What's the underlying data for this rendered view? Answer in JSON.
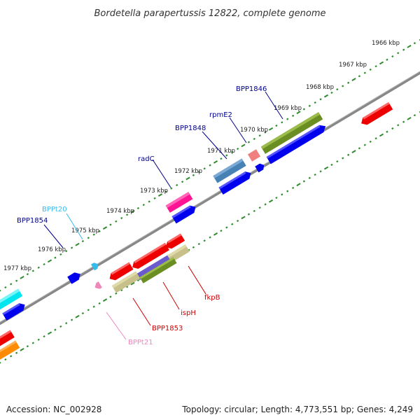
{
  "title": "Bordetella parapertussis 12822, complete genome",
  "tick_labels": [
    "1966 kbp",
    "1967 kbp",
    "1968 kbp",
    "1969 kbp",
    "1970 kbp",
    "1971 kbp",
    "1972 kbp",
    "1973 kbp",
    "1974 kbp",
    "1975 kbp",
    "1976 kbp",
    "1977 kbp"
  ],
  "gene_labels": [
    {
      "text": "BPP1846",
      "color": "#00008b"
    },
    {
      "text": "rpmE2",
      "color": "#00008b"
    },
    {
      "text": "BPP1848",
      "color": "#00008b"
    },
    {
      "text": "radC",
      "color": "#00008b"
    },
    {
      "text": "BPPt20",
      "color": "#33bbee"
    },
    {
      "text": "BPP1854",
      "color": "#00008b"
    },
    {
      "text": "fkpB",
      "color": "#cc0000"
    },
    {
      "text": "ispH",
      "color": "#cc0000"
    },
    {
      "text": "BPP1853",
      "color": "#cc0000"
    },
    {
      "text": "BPPt21",
      "color": "#ee88bb"
    }
  ],
  "footer": {
    "accession": "Accession: NC_002928",
    "topology": "Topology: circular; Length: 4,773,551 bp; Genes: 4,249"
  },
  "colors": {
    "backbone": "#888888",
    "tick": "#2e8b2e",
    "forward": "#0000ee",
    "reverse": "#ee0000",
    "olive": "#6b8e23",
    "khaki": "#c8c08a",
    "steel": "#4682b4",
    "pink": "#ff1493",
    "salmon": "#f08080",
    "cyan": "#00e5ee",
    "orange": "#ff8c00",
    "slate": "#6a5acd"
  }
}
